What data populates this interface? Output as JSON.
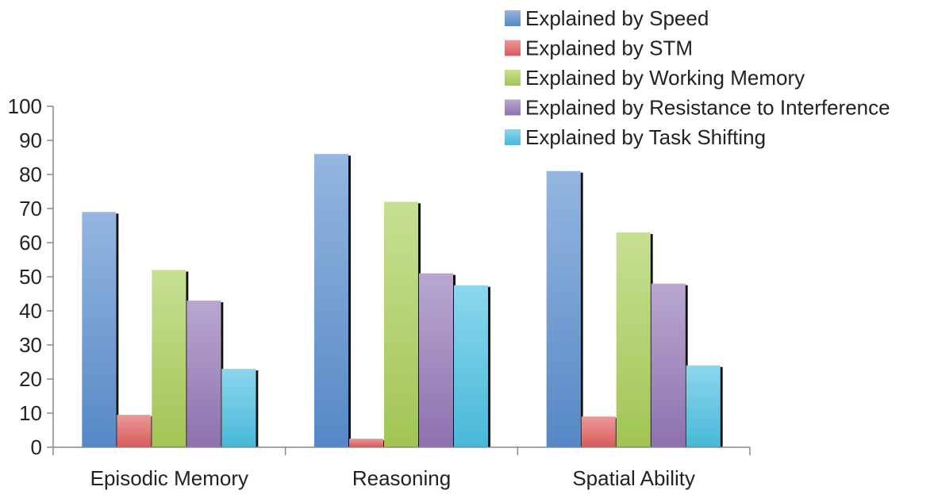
{
  "chart_data": {
    "type": "bar",
    "title": "",
    "xlabel": "",
    "ylabel": "",
    "categories": [
      "Episodic Memory",
      "Reasoning",
      "Spatial Ability"
    ],
    "series": [
      {
        "name": "Explained by Speed",
        "color": "#5b8fd0",
        "values": [
          69,
          86,
          81
        ]
      },
      {
        "name": "Explained by STM",
        "color": "#e26060",
        "values": [
          9.5,
          2.5,
          9
        ]
      },
      {
        "name": "Explained by Working Memory",
        "color": "#a9cf58",
        "values": [
          52,
          72,
          63
        ]
      },
      {
        "name": "Explained by Resistance to Interference",
        "color": "#9477b7",
        "values": [
          43,
          51,
          48
        ]
      },
      {
        "name": "Explained by Task Shifting",
        "color": "#4cc2e3",
        "values": [
          23,
          47.5,
          24
        ]
      }
    ],
    "ylim": [
      0,
      100
    ],
    "yticks": [
      0,
      10,
      20,
      30,
      40,
      50,
      60,
      70,
      80,
      90,
      100
    ],
    "grid": false,
    "legend": "top-right"
  }
}
